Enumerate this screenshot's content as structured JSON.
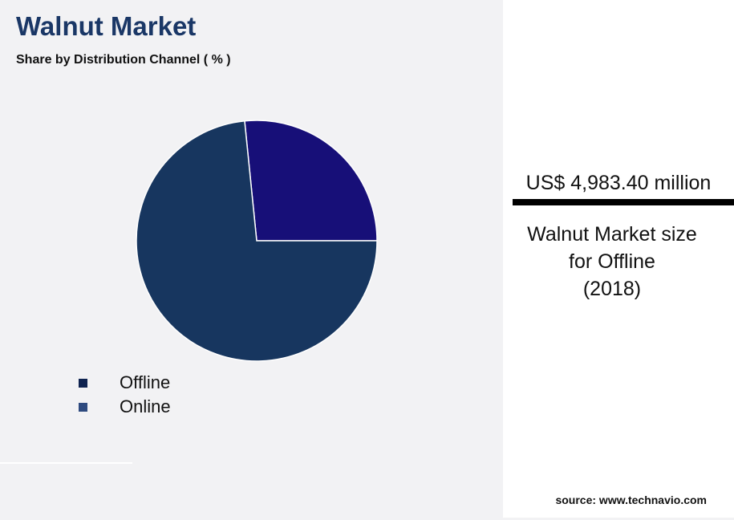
{
  "title": "Walnut Market",
  "subtitle": "Share by Distribution Channel ( % )",
  "chart_data": {
    "type": "pie",
    "title": "Walnut Market",
    "subtitle": "Share by Distribution Channel ( % )",
    "categories": [
      "Offline",
      "Online"
    ],
    "values": [
      73.4,
      26.6
    ],
    "colors": [
      "#17365f",
      "#170f78"
    ],
    "legend_colors": [
      "#0f2350",
      "#2e4a7f"
    ],
    "legend": "bottom-left"
  },
  "panel": {
    "value": "US$ 4,983.40 million",
    "desc_lines": [
      "Walnut Market size",
      "for Offline",
      "(2018)"
    ],
    "source": "source: www.technavio.com"
  }
}
